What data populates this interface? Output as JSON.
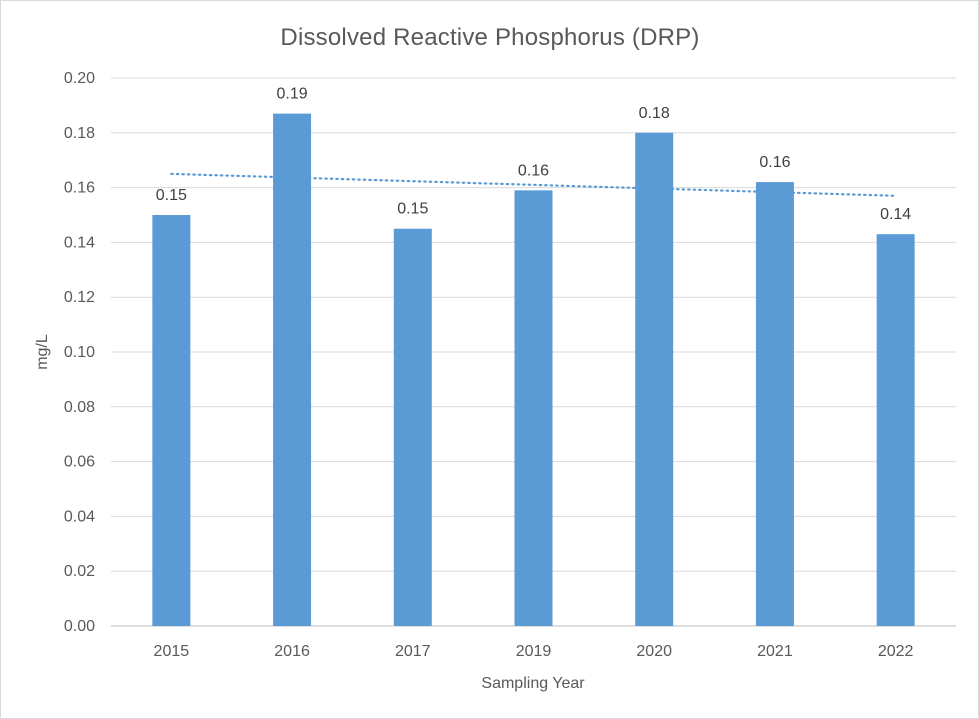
{
  "chart_data": {
    "type": "bar",
    "title": "Dissolved Reactive Phosphorus (DRP)",
    "xlabel": "Sampling Year",
    "ylabel": "mg/L",
    "categories": [
      "2015",
      "2016",
      "2017",
      "2019",
      "2020",
      "2021",
      "2022"
    ],
    "values": [
      0.15,
      0.187,
      0.145,
      0.159,
      0.18,
      0.162,
      0.143
    ],
    "data_labels": [
      "0.15",
      "0.19",
      "0.15",
      "0.16",
      "0.18",
      "0.16",
      "0.14"
    ],
    "ylim": [
      0,
      0.2
    ],
    "yticks": [
      "0.00",
      "0.02",
      "0.04",
      "0.06",
      "0.08",
      "0.10",
      "0.12",
      "0.14",
      "0.16",
      "0.18",
      "0.20"
    ],
    "grid": true,
    "trendline": {
      "type": "linear",
      "style": "dotted",
      "start_value": 0.165,
      "end_value": 0.157
    },
    "colors": {
      "bar": "#5b9bd5",
      "trendline": "#5b9bd5",
      "grid": "#d9d9d9",
      "text": "#595959"
    }
  }
}
